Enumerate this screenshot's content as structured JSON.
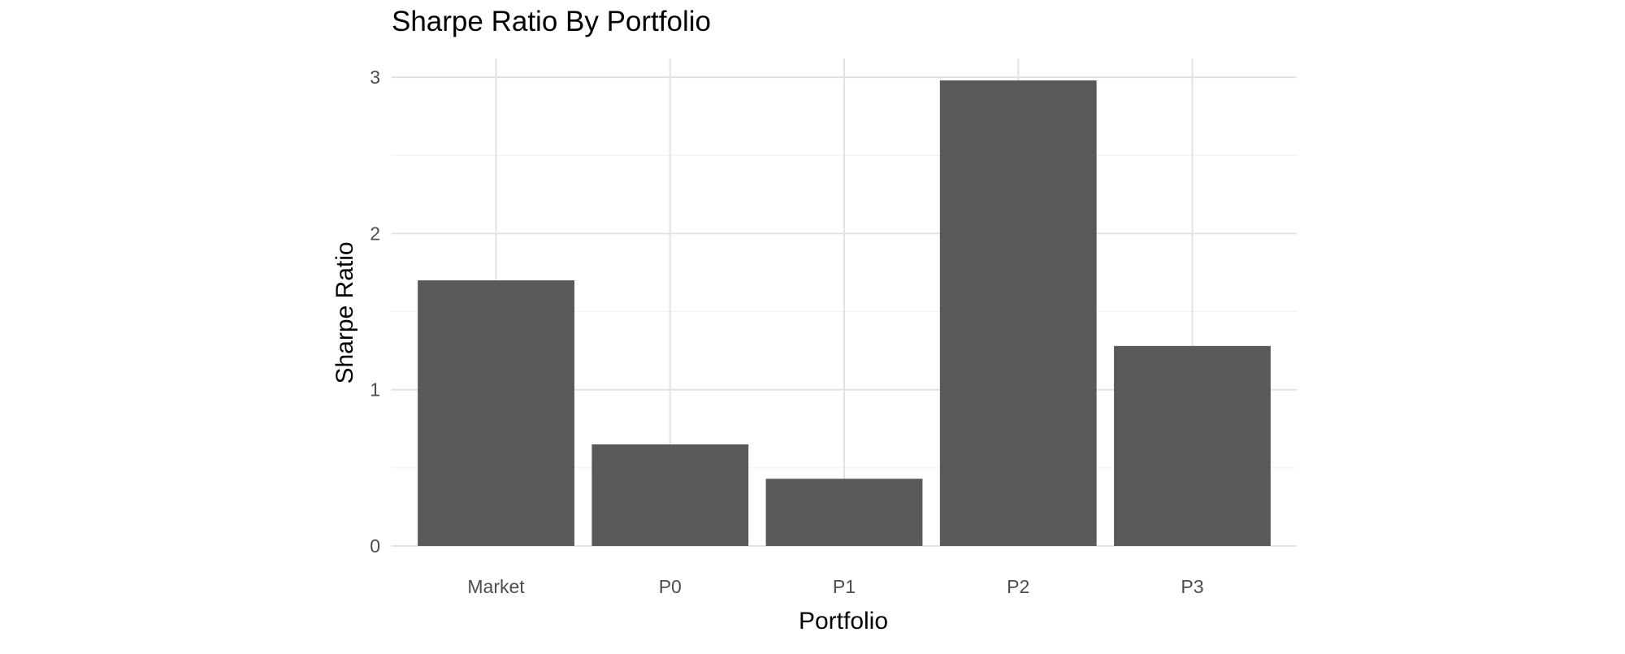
{
  "chart_data": {
    "type": "bar",
    "title": "Sharpe Ratio By Portfolio",
    "xlabel": "Portfolio",
    "ylabel": "Sharpe Ratio",
    "categories": [
      "Market",
      "P0",
      "P1",
      "P2",
      "P3"
    ],
    "values": [
      1.7,
      0.65,
      0.43,
      2.98,
      1.28
    ],
    "ylim": [
      0,
      3.12
    ],
    "yticks": [
      0,
      1,
      2,
      3
    ],
    "ytick_labels": [
      "0",
      "1",
      "2",
      "3"
    ],
    "grid": true,
    "legend": "none",
    "bar_color": "#595959"
  }
}
